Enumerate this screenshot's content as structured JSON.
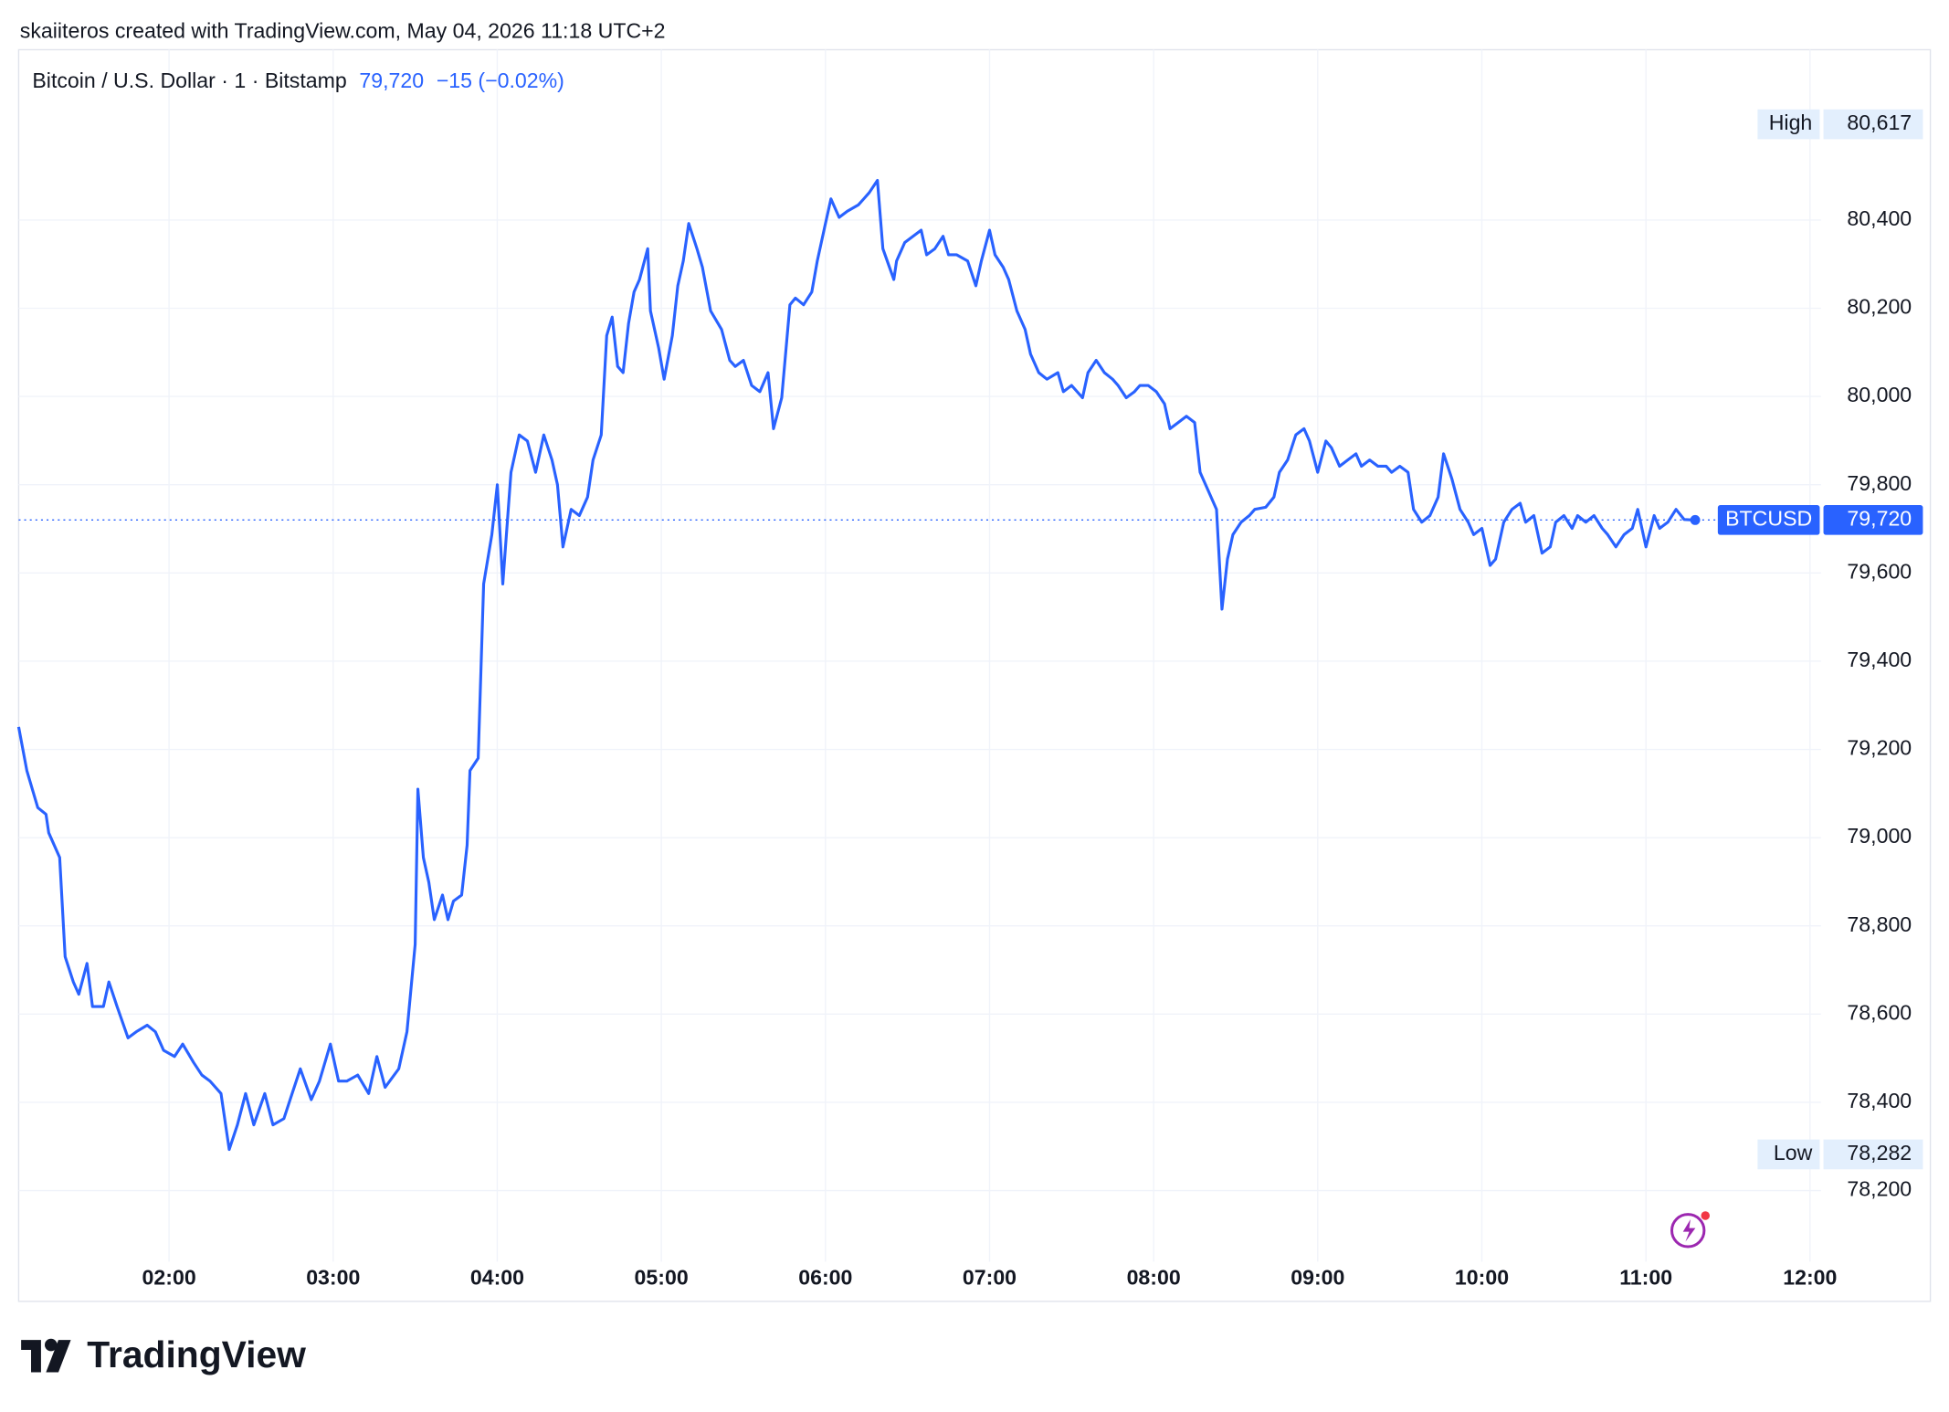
{
  "header": "skaiiteros created with TradingView.com, May 04, 2026 11:18 UTC+2",
  "brand": "TradingView",
  "chart_data": {
    "type": "line",
    "title": "Bitcoin / U.S. Dollar · 1 · Bitstamp",
    "last": {
      "value": 79720,
      "label": "79,720"
    },
    "change_label": "−15 (−0.02%)",
    "symbol": "BTCUSD",
    "high_text": "High",
    "high": {
      "value": 80617,
      "label": "80,617"
    },
    "low_text": "Low",
    "low": {
      "value": 78282,
      "label": "78,282"
    },
    "grid": true,
    "xlim": [
      65,
      724
    ],
    "ylim": [
      78039,
      80786
    ],
    "xticks": [
      {
        "value": 120,
        "label": "02:00"
      },
      {
        "value": 180,
        "label": "03:00"
      },
      {
        "value": 240,
        "label": "04:00"
      },
      {
        "value": 300,
        "label": "05:00"
      },
      {
        "value": 360,
        "label": "06:00"
      },
      {
        "value": 420,
        "label": "07:00"
      },
      {
        "value": 480,
        "label": "08:00"
      },
      {
        "value": 540,
        "label": "09:00"
      },
      {
        "value": 600,
        "label": "10:00"
      },
      {
        "value": 660,
        "label": "11:00"
      },
      {
        "value": 720,
        "label": "12:00"
      }
    ],
    "yticks": [
      {
        "value": 78200,
        "label": "78,200"
      },
      {
        "value": 78400,
        "label": "78,400"
      },
      {
        "value": 78600,
        "label": "78,600"
      },
      {
        "value": 78800,
        "label": "78,800"
      },
      {
        "value": 79000,
        "label": "79,000"
      },
      {
        "value": 79200,
        "label": "79,200"
      },
      {
        "value": 79400,
        "label": "79,400"
      },
      {
        "value": 79600,
        "label": "79,600"
      },
      {
        "value": 79800,
        "label": "79,800"
      },
      {
        "value": 80000,
        "label": "80,000"
      },
      {
        "value": 80200,
        "label": "80,200"
      },
      {
        "value": 80400,
        "label": "80,400"
      }
    ],
    "x": [
      65,
      68,
      72,
      75,
      76,
      80,
      82,
      85,
      87,
      90,
      92,
      96,
      98,
      101,
      105,
      108,
      112,
      115,
      118,
      122,
      125,
      129,
      132,
      135,
      139,
      142,
      145,
      148,
      151,
      155,
      158,
      162,
      165,
      168,
      172,
      175,
      179,
      182,
      185,
      189,
      193,
      196,
      199,
      204,
      207,
      210,
      211,
      213,
      215,
      217,
      220,
      222,
      224,
      227,
      229,
      230,
      233,
      234,
      235,
      238,
      240,
      242,
      244,
      245,
      248,
      251,
      254,
      257,
      260,
      262,
      264,
      267,
      270,
      273,
      275,
      278,
      280,
      282,
      284,
      286,
      288,
      290,
      292,
      295,
      296,
      299,
      301,
      304,
      306,
      308,
      310,
      313,
      315,
      318,
      322,
      325,
      327,
      330,
      333,
      336,
      339,
      341,
      344,
      347,
      349,
      352,
      355,
      357,
      360,
      362,
      365,
      368,
      372,
      374,
      376,
      379,
      381,
      385,
      386,
      389,
      392,
      395,
      397,
      400,
      403,
      405,
      408,
      412,
      415,
      417,
      420,
      422,
      425,
      427,
      430,
      433,
      435,
      438,
      441,
      445,
      447,
      450,
      454,
      456,
      459,
      462,
      465,
      467,
      470,
      473,
      475,
      478,
      481,
      484,
      486,
      489,
      492,
      495,
      497,
      500,
      503,
      505,
      507,
      509,
      512,
      515,
      517,
      521,
      524,
      526,
      529,
      532,
      535,
      537,
      540,
      543,
      545,
      548,
      551,
      554,
      556,
      559,
      562,
      565,
      567,
      570,
      573,
      575,
      578,
      581,
      584,
      586,
      589,
      592,
      595,
      597,
      600,
      603,
      605,
      608,
      611,
      614,
      616,
      619,
      622,
      625,
      627,
      630,
      633,
      635,
      638,
      641,
      644,
      646,
      649,
      652,
      655,
      657,
      660,
      663,
      665,
      668,
      671,
      674,
      678
    ],
    "series": [
      {
        "name": "BTCUSD",
        "color": "#2962ff",
        "values": [
          79251,
          79152,
          79068,
          79053,
          79011,
          78955,
          78730,
          78673,
          78645,
          78715,
          78617,
          78617,
          78673,
          78617,
          78546,
          78560,
          78575,
          78560,
          78518,
          78504,
          78532,
          78490,
          78462,
          78448,
          78420,
          78293,
          78349,
          78420,
          78349,
          78420,
          78349,
          78363,
          78420,
          78476,
          78406,
          78448,
          78532,
          78448,
          78448,
          78462,
          78420,
          78504,
          78434,
          78476,
          78560,
          78758,
          79110,
          78955,
          78899,
          78814,
          78870,
          78814,
          78856,
          78870,
          78983,
          79152,
          79180,
          79377,
          79575,
          79687,
          79800,
          79575,
          79744,
          79828,
          79913,
          79899,
          79828,
          79913,
          79856,
          79800,
          79659,
          79744,
          79730,
          79772,
          79856,
          79913,
          80138,
          80180,
          80068,
          80054,
          80166,
          80237,
          80265,
          80335,
          80194,
          80110,
          80039,
          80138,
          80251,
          80307,
          80392,
          80335,
          80293,
          80194,
          80152,
          80082,
          80068,
          80082,
          80025,
          80011,
          80054,
          79927,
          79997,
          80208,
          80223,
          80208,
          80237,
          80307,
          80392,
          80448,
          80406,
          80420,
          80434,
          80448,
          80462,
          80490,
          80335,
          80265,
          80307,
          80349,
          80363,
          80377,
          80321,
          80335,
          80363,
          80321,
          80321,
          80307,
          80251,
          80307,
          80377,
          80321,
          80293,
          80265,
          80194,
          80152,
          80096,
          80054,
          80039,
          80054,
          80011,
          80025,
          79997,
          80054,
          80082,
          80054,
          80039,
          80025,
          79997,
          80011,
          80025,
          80025,
          80011,
          79983,
          79927,
          79941,
          79955,
          79941,
          79828,
          79786,
          79744,
          79518,
          79631,
          79687,
          79715,
          79730,
          79744,
          79749,
          79772,
          79828,
          79856,
          79913,
          79927,
          79899,
          79828,
          79899,
          79884,
          79842,
          79856,
          79870,
          79842,
          79856,
          79842,
          79842,
          79828,
          79842,
          79828,
          79744,
          79715,
          79730,
          79772,
          79870,
          79814,
          79744,
          79715,
          79687,
          79701,
          79617,
          79631,
          79715,
          79744,
          79758,
          79715,
          79730,
          79645,
          79659,
          79715,
          79730,
          79701,
          79730,
          79715,
          79730,
          79701,
          79687,
          79659,
          79687,
          79701,
          79744,
          79659,
          79730,
          79701,
          79715,
          79744,
          79721,
          79720
        ]
      }
    ]
  }
}
